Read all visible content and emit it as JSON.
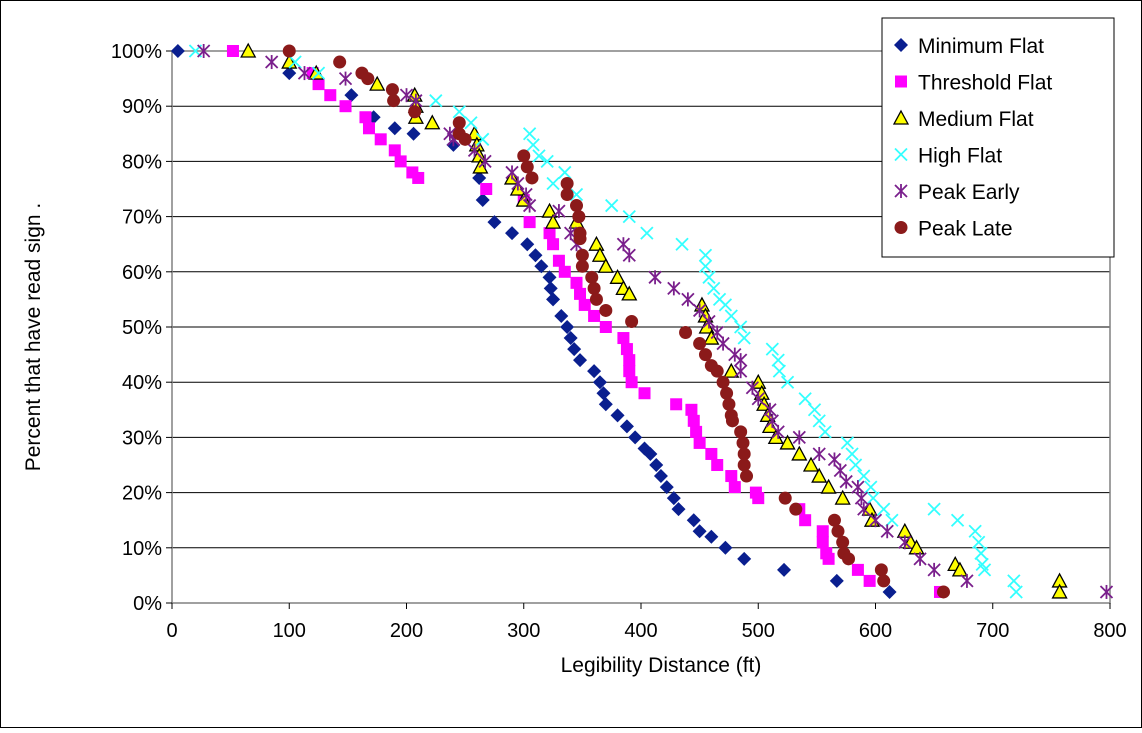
{
  "chart_data": {
    "type": "scatter",
    "title": "",
    "xlabel": "Legibility Distance (ft)",
    "ylabel": "Percent that have read sign .",
    "xlim": [
      0,
      800
    ],
    "ylim": [
      0,
      100
    ],
    "x_ticks": [
      0,
      100,
      200,
      300,
      400,
      500,
      600,
      700,
      800
    ],
    "y_ticks": [
      0,
      10,
      20,
      30,
      40,
      50,
      60,
      70,
      80,
      90,
      100
    ],
    "x_tick_labels": [
      "0",
      "100",
      "200",
      "300",
      "400",
      "500",
      "600",
      "700",
      "800"
    ],
    "y_tick_labels": [
      "0%",
      "10%",
      "20%",
      "30%",
      "40%",
      "50%",
      "60%",
      "70%",
      "80%",
      "90%",
      "100%"
    ],
    "grid": "horizontal",
    "legend_position": "top-right",
    "series": [
      {
        "name": "Minimum Flat",
        "marker": "diamond",
        "color": "#0a1f8f",
        "points": [
          [
            5,
            100
          ],
          [
            100,
            96
          ],
          [
            153,
            92
          ],
          [
            172,
            88
          ],
          [
            190,
            86
          ],
          [
            206,
            85
          ],
          [
            240,
            83
          ],
          [
            262,
            77
          ],
          [
            265,
            73
          ],
          [
            275,
            69
          ],
          [
            290,
            67
          ],
          [
            303,
            65
          ],
          [
            310,
            63
          ],
          [
            315,
            61
          ],
          [
            322,
            59
          ],
          [
            323,
            57
          ],
          [
            325,
            55
          ],
          [
            332,
            52
          ],
          [
            337,
            50
          ],
          [
            340,
            48
          ],
          [
            343,
            46
          ],
          [
            348,
            44
          ],
          [
            360,
            42
          ],
          [
            365,
            40
          ],
          [
            368,
            38
          ],
          [
            370,
            36
          ],
          [
            380,
            34
          ],
          [
            388,
            32
          ],
          [
            395,
            30
          ],
          [
            403,
            28
          ],
          [
            408,
            27
          ],
          [
            413,
            25
          ],
          [
            417,
            23
          ],
          [
            422,
            21
          ],
          [
            428,
            19
          ],
          [
            432,
            17
          ],
          [
            445,
            15
          ],
          [
            450,
            13
          ],
          [
            460,
            12
          ],
          [
            472,
            10
          ],
          [
            488,
            8
          ],
          [
            522,
            6
          ],
          [
            567,
            4
          ],
          [
            612,
            2
          ]
        ]
      },
      {
        "name": "Threshold Flat",
        "marker": "square",
        "color": "#ff00ff",
        "points": [
          [
            52,
            100
          ],
          [
            120,
            96
          ],
          [
            125,
            94
          ],
          [
            135,
            92
          ],
          [
            148,
            90
          ],
          [
            165,
            88
          ],
          [
            168,
            86
          ],
          [
            178,
            84
          ],
          [
            190,
            82
          ],
          [
            195,
            80
          ],
          [
            205,
            78
          ],
          [
            210,
            77
          ],
          [
            268,
            75
          ],
          [
            300,
            73
          ],
          [
            305,
            69
          ],
          [
            322,
            67
          ],
          [
            325,
            65
          ],
          [
            330,
            62
          ],
          [
            335,
            60
          ],
          [
            345,
            58
          ],
          [
            348,
            56
          ],
          [
            352,
            54
          ],
          [
            360,
            52
          ],
          [
            370,
            50
          ],
          [
            385,
            48
          ],
          [
            388,
            46
          ],
          [
            390,
            44
          ],
          [
            390,
            42
          ],
          [
            392,
            40
          ],
          [
            403,
            38
          ],
          [
            430,
            36
          ],
          [
            443,
            35
          ],
          [
            445,
            33
          ],
          [
            447,
            31
          ],
          [
            450,
            29
          ],
          [
            460,
            27
          ],
          [
            465,
            25
          ],
          [
            477,
            23
          ],
          [
            480,
            21
          ],
          [
            498,
            20
          ],
          [
            500,
            19
          ],
          [
            535,
            17
          ],
          [
            540,
            15
          ],
          [
            555,
            13
          ],
          [
            555,
            11
          ],
          [
            558,
            9
          ],
          [
            560,
            8
          ],
          [
            585,
            6
          ],
          [
            595,
            4
          ],
          [
            655,
            2
          ]
        ]
      },
      {
        "name": "Medium Flat",
        "marker": "triangle",
        "color": "#ffff00",
        "points": [
          [
            65,
            100
          ],
          [
            100,
            98
          ],
          [
            123,
            96
          ],
          [
            175,
            94
          ],
          [
            207,
            92
          ],
          [
            208,
            90
          ],
          [
            208,
            88
          ],
          [
            222,
            87
          ],
          [
            258,
            85
          ],
          [
            260,
            83
          ],
          [
            262,
            81
          ],
          [
            263,
            79
          ],
          [
            290,
            77
          ],
          [
            295,
            75
          ],
          [
            300,
            73
          ],
          [
            322,
            71
          ],
          [
            325,
            69
          ],
          [
            345,
            69
          ],
          [
            362,
            65
          ],
          [
            365,
            63
          ],
          [
            370,
            61
          ],
          [
            380,
            59
          ],
          [
            385,
            57
          ],
          [
            390,
            56
          ],
          [
            452,
            54
          ],
          [
            455,
            52
          ],
          [
            456,
            50
          ],
          [
            460,
            48
          ],
          [
            477,
            42
          ],
          [
            500,
            40
          ],
          [
            503,
            38
          ],
          [
            505,
            36
          ],
          [
            508,
            34
          ],
          [
            510,
            32
          ],
          [
            515,
            30
          ],
          [
            525,
            29
          ],
          [
            535,
            27
          ],
          [
            545,
            25
          ],
          [
            552,
            23
          ],
          [
            560,
            21
          ],
          [
            572,
            19
          ],
          [
            595,
            17
          ],
          [
            597,
            15
          ],
          [
            625,
            13
          ],
          [
            630,
            11
          ],
          [
            635,
            10
          ],
          [
            668,
            7
          ],
          [
            672,
            6
          ],
          [
            757,
            4
          ],
          [
            757,
            2
          ]
        ]
      },
      {
        "name": "High Flat",
        "marker": "x",
        "color": "#33ffff",
        "points": [
          [
            20,
            100
          ],
          [
            105,
            98
          ],
          [
            125,
            96
          ],
          [
            225,
            91
          ],
          [
            245,
            89
          ],
          [
            255,
            87
          ],
          [
            265,
            84
          ],
          [
            305,
            85
          ],
          [
            308,
            83
          ],
          [
            313,
            81
          ],
          [
            320,
            80
          ],
          [
            325,
            76
          ],
          [
            335,
            78
          ],
          [
            345,
            74
          ],
          [
            375,
            72
          ],
          [
            390,
            70
          ],
          [
            405,
            67
          ],
          [
            435,
            65
          ],
          [
            455,
            63
          ],
          [
            455,
            61
          ],
          [
            458,
            59
          ],
          [
            462,
            57
          ],
          [
            467,
            55
          ],
          [
            472,
            54
          ],
          [
            477,
            52
          ],
          [
            485,
            50
          ],
          [
            488,
            48
          ],
          [
            512,
            46
          ],
          [
            517,
            44
          ],
          [
            518,
            42
          ],
          [
            525,
            40
          ],
          [
            540,
            37
          ],
          [
            548,
            35
          ],
          [
            552,
            33
          ],
          [
            557,
            31
          ],
          [
            576,
            29
          ],
          [
            580,
            27
          ],
          [
            583,
            25
          ],
          [
            590,
            23
          ],
          [
            596,
            21
          ],
          [
            598,
            19
          ],
          [
            607,
            17
          ],
          [
            614,
            15
          ],
          [
            650,
            17
          ],
          [
            670,
            15
          ],
          [
            685,
            13
          ],
          [
            688,
            11
          ],
          [
            690,
            9
          ],
          [
            691,
            7
          ],
          [
            693,
            6
          ],
          [
            718,
            4
          ],
          [
            720,
            2
          ]
        ]
      },
      {
        "name": "Peak Early",
        "marker": "asterisk",
        "color": "#7a1f8c",
        "points": [
          [
            27,
            100
          ],
          [
            85,
            98
          ],
          [
            113,
            96
          ],
          [
            148,
            95
          ],
          [
            200,
            92
          ],
          [
            208,
            91
          ],
          [
            237,
            85
          ],
          [
            240,
            84
          ],
          [
            258,
            82
          ],
          [
            267,
            80
          ],
          [
            290,
            78
          ],
          [
            295,
            76
          ],
          [
            302,
            74
          ],
          [
            305,
            72
          ],
          [
            330,
            71
          ],
          [
            340,
            67
          ],
          [
            345,
            65
          ],
          [
            385,
            65
          ],
          [
            390,
            63
          ],
          [
            412,
            59
          ],
          [
            428,
            57
          ],
          [
            440,
            55
          ],
          [
            450,
            53
          ],
          [
            458,
            51
          ],
          [
            465,
            49
          ],
          [
            470,
            47
          ],
          [
            480,
            45
          ],
          [
            485,
            44
          ],
          [
            485,
            42
          ],
          [
            495,
            39
          ],
          [
            500,
            37
          ],
          [
            510,
            35
          ],
          [
            512,
            33
          ],
          [
            517,
            31
          ],
          [
            535,
            30
          ],
          [
            552,
            27
          ],
          [
            565,
            26
          ],
          [
            570,
            24
          ],
          [
            575,
            22
          ],
          [
            585,
            21
          ],
          [
            588,
            19
          ],
          [
            590,
            17
          ],
          [
            600,
            15
          ],
          [
            610,
            13
          ],
          [
            625,
            11
          ],
          [
            638,
            8
          ],
          [
            650,
            6
          ],
          [
            678,
            4
          ],
          [
            797,
            2
          ]
        ]
      },
      {
        "name": "Peak Late",
        "marker": "circle",
        "color": "#8b1a1a",
        "points": [
          [
            100,
            100
          ],
          [
            143,
            98
          ],
          [
            162,
            96
          ],
          [
            167,
            95
          ],
          [
            188,
            93
          ],
          [
            189,
            91
          ],
          [
            207,
            89
          ],
          [
            245,
            87
          ],
          [
            245,
            85
          ],
          [
            250,
            84
          ],
          [
            300,
            81
          ],
          [
            303,
            79
          ],
          [
            307,
            77
          ],
          [
            337,
            76
          ],
          [
            337,
            74
          ],
          [
            345,
            72
          ],
          [
            347,
            70
          ],
          [
            348,
            67
          ],
          [
            348,
            66
          ],
          [
            350,
            63
          ],
          [
            350,
            61
          ],
          [
            358,
            59
          ],
          [
            360,
            57
          ],
          [
            362,
            55
          ],
          [
            370,
            53
          ],
          [
            392,
            51
          ],
          [
            438,
            49
          ],
          [
            450,
            47
          ],
          [
            455,
            45
          ],
          [
            460,
            43
          ],
          [
            465,
            42
          ],
          [
            470,
            40
          ],
          [
            473,
            38
          ],
          [
            475,
            36
          ],
          [
            477,
            34
          ],
          [
            478,
            33
          ],
          [
            485,
            31
          ],
          [
            487,
            29
          ],
          [
            488,
            27
          ],
          [
            488,
            25
          ],
          [
            490,
            23
          ],
          [
            523,
            19
          ],
          [
            532,
            17
          ],
          [
            565,
            15
          ],
          [
            568,
            13
          ],
          [
            572,
            11
          ],
          [
            573,
            9
          ],
          [
            577,
            8
          ],
          [
            605,
            6
          ],
          [
            607,
            4
          ],
          [
            658,
            2
          ]
        ]
      }
    ]
  }
}
